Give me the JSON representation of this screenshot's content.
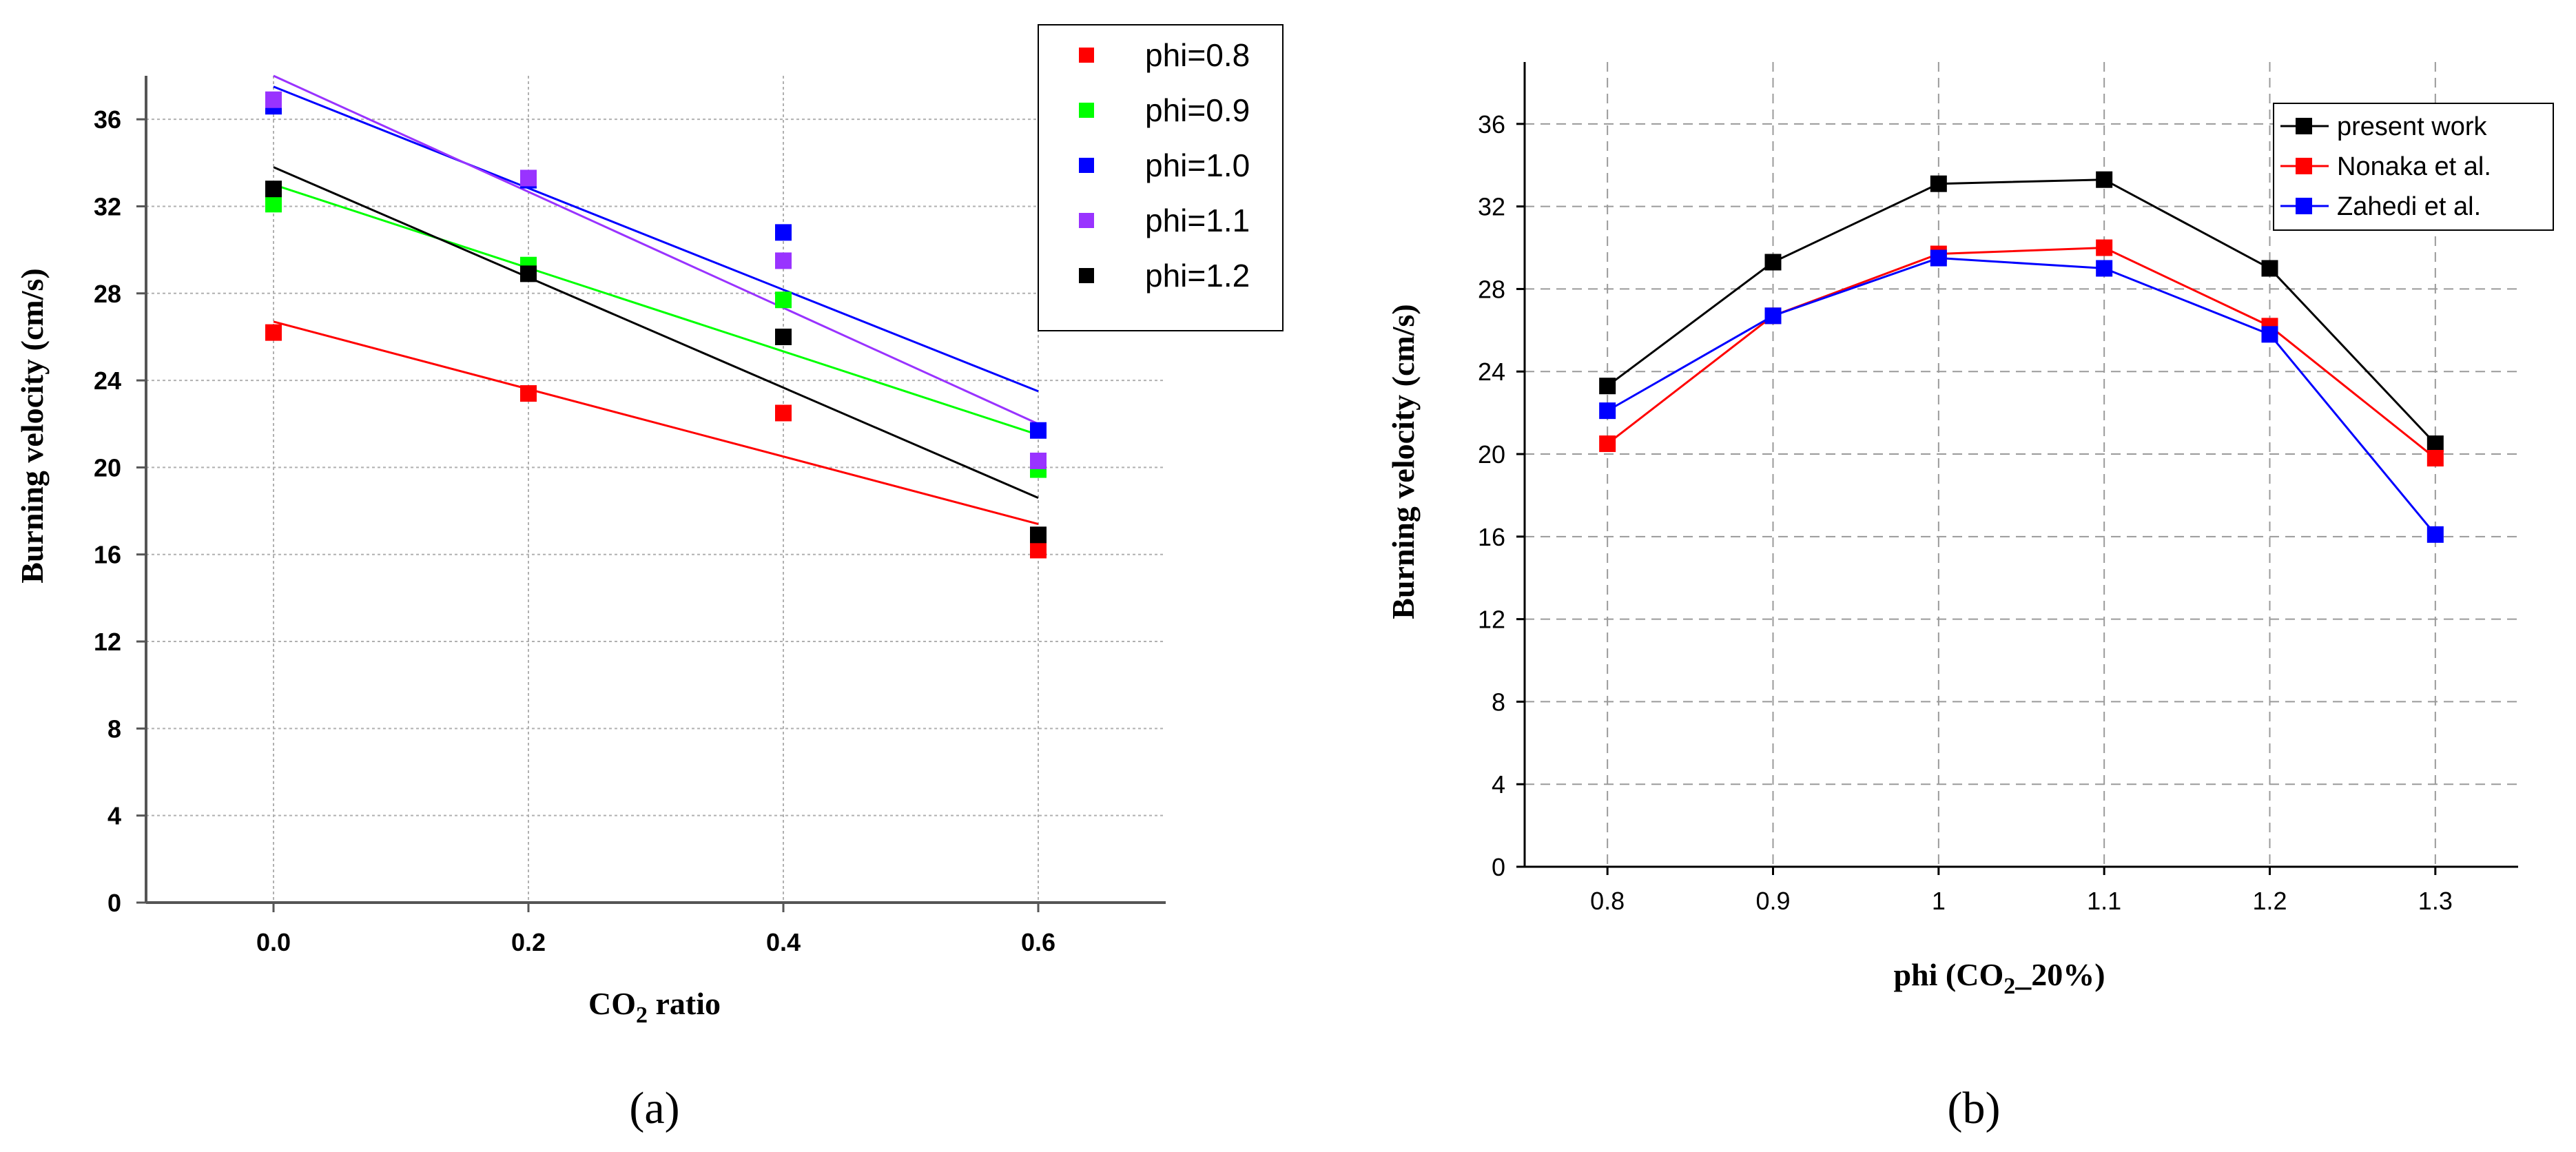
{
  "chart_data": [
    {
      "id": "a",
      "type": "scatter",
      "caption": "(a)",
      "xlabel": "ratio",
      "xlabel_chem": {
        "base": "CO",
        "sub": "2"
      },
      "ylabel": "Burning velocity (cm/s)",
      "xlim": [
        -0.1,
        0.7
      ],
      "ylim": [
        0,
        38
      ],
      "xticks": [
        0.0,
        0.2,
        0.4,
        0.6
      ],
      "xtick_labels": [
        "0.0",
        "0.2",
        "0.4",
        "0.6"
      ],
      "yticks": [
        0,
        4,
        8,
        12,
        16,
        20,
        24,
        28,
        32,
        36
      ],
      "grid": true,
      "legend_position": "top-right",
      "x": [
        0.0,
        0.2,
        0.4,
        0.6
      ],
      "series": [
        {
          "name": "phi=0.8",
          "color": "#ff0000",
          "values": [
            26.2,
            23.4,
            22.5,
            16.2
          ],
          "fit": [
            26.7,
            17.4
          ]
        },
        {
          "name": "phi=0.9",
          "color": "#00ff00",
          "values": [
            32.1,
            29.3,
            27.7,
            19.9
          ],
          "fit": [
            33.0,
            21.5
          ]
        },
        {
          "name": "phi=1.0",
          "color": "#0000ff",
          "values": [
            36.6,
            33.2,
            30.8,
            21.7
          ],
          "fit": [
            37.5,
            23.5
          ]
        },
        {
          "name": "phi=1.1",
          "color": "#9933ff",
          "values": [
            36.9,
            33.3,
            29.5,
            20.3
          ],
          "fit": [
            38.0,
            22.0
          ]
        },
        {
          "name": "phi=1.2",
          "color": "#000000",
          "values": [
            32.8,
            28.9,
            26.0,
            16.9
          ],
          "fit": [
            33.8,
            18.6
          ]
        }
      ]
    },
    {
      "id": "b",
      "type": "line",
      "caption": "(b)",
      "xlabel": "phi (CO",
      "xlabel_sub": "2",
      "xlabel_suffix": "_20%)",
      "ylabel": "Burning velocity (cm/s)",
      "xlim": [
        0.75,
        1.35
      ],
      "ylim": [
        0,
        39
      ],
      "xticks": [
        0.8,
        0.9,
        1.0,
        1.1,
        1.2,
        1.3
      ],
      "xtick_labels": [
        "0.8",
        "0.9",
        "1",
        "1.1",
        "1.2",
        "1.3"
      ],
      "yticks": [
        0,
        4,
        8,
        12,
        16,
        20,
        24,
        28,
        32,
        36
      ],
      "grid": true,
      "legend_position": "top-right",
      "x": [
        0.8,
        0.9,
        1.0,
        1.1,
        1.2,
        1.3
      ],
      "series": [
        {
          "name": "present work",
          "color": "#000000",
          "values": [
            23.3,
            29.3,
            33.1,
            33.3,
            29.0,
            20.5
          ]
        },
        {
          "name": "Nonaka et al.",
          "color": "#ff0000",
          "values": [
            20.5,
            26.7,
            29.7,
            30.0,
            26.2,
            19.8
          ]
        },
        {
          "name": "Zahedi et al.",
          "color": "#0000ff",
          "values": [
            22.1,
            26.7,
            29.5,
            29.0,
            25.8,
            16.1
          ]
        }
      ]
    }
  ]
}
